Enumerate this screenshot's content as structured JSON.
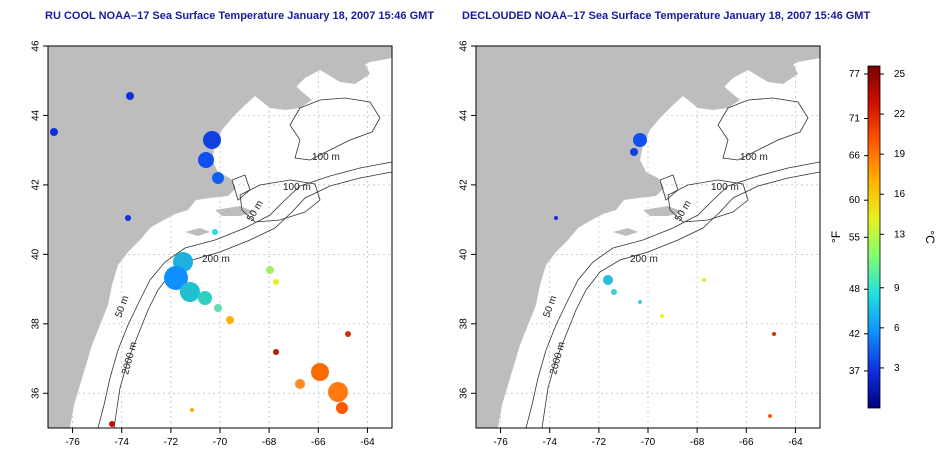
{
  "panels": [
    {
      "title": "RU COOL NOAA–17 Sea Surface Temperature January 18, 2007 15:46 GMT",
      "clouds": true
    },
    {
      "title": "DECLOUDED NOAA–17 Sea Surface Temperature January 18, 2007 15:46 GMT",
      "clouds": false
    }
  ],
  "axes": {
    "lon_ticks": [
      "-76",
      "-74",
      "-72",
      "-70",
      "-68",
      "-66",
      "-64"
    ],
    "lat_ticks": [
      "46",
      "44",
      "42",
      "40",
      "38",
      "36"
    ],
    "lon_range": [
      -77,
      -63
    ],
    "lat_range": [
      35,
      46
    ]
  },
  "contour_labels": [
    "100 m",
    "100 m",
    "50 m",
    "200 m",
    "50 m",
    "2000 m"
  ],
  "colorbar": {
    "fahrenheit_ticks": [
      "77",
      "71",
      "66",
      "60",
      "55",
      "48",
      "42",
      "37"
    ],
    "celsius_ticks": [
      "25",
      "22",
      "19",
      "16",
      "13",
      "9",
      "6",
      "3"
    ],
    "f_label": "°F",
    "c_label": "°C",
    "colors": [
      "#7a0000",
      "#d01000",
      "#ff5a00",
      "#ffb000",
      "#e8f020",
      "#80ff70",
      "#20e0e0",
      "#1090ff",
      "#1030e0",
      "#000080"
    ]
  },
  "colors": {
    "land": "#bdbdbd",
    "ocean": "#ffffff",
    "title": "#1a1a9c",
    "contour": "#333333"
  }
}
